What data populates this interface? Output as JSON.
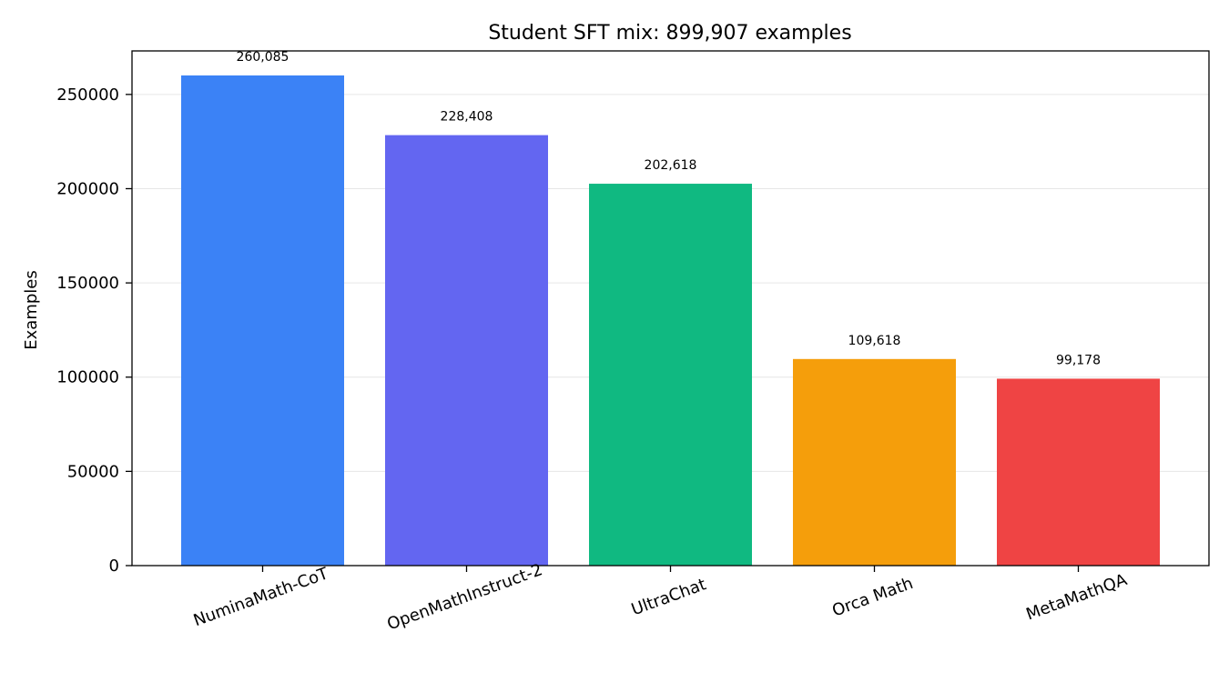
{
  "chart_data": {
    "type": "bar",
    "title": "Student SFT mix: 899,907 examples",
    "xlabel": "",
    "ylabel": "Examples",
    "categories": [
      "NuminaMath-CoT",
      "OpenMathInstruct-2",
      "UltraChat",
      "Orca Math",
      "MetaMathQA"
    ],
    "values": [
      260085,
      228408,
      202618,
      109618,
      99178
    ],
    "data_labels": [
      "260,085",
      "228,408",
      "202,618",
      "109,618",
      "99,178"
    ],
    "colors": [
      "#3b82f6",
      "#6366f1",
      "#10b981",
      "#f59e0b",
      "#ef4444"
    ],
    "ylim": [
      0,
      273089
    ],
    "yticks": [
      0,
      50000,
      100000,
      150000,
      200000,
      250000
    ],
    "ytick_labels": [
      "0",
      "50000",
      "100000",
      "150000",
      "200000",
      "250000"
    ],
    "grid": "y",
    "legend": "none"
  }
}
